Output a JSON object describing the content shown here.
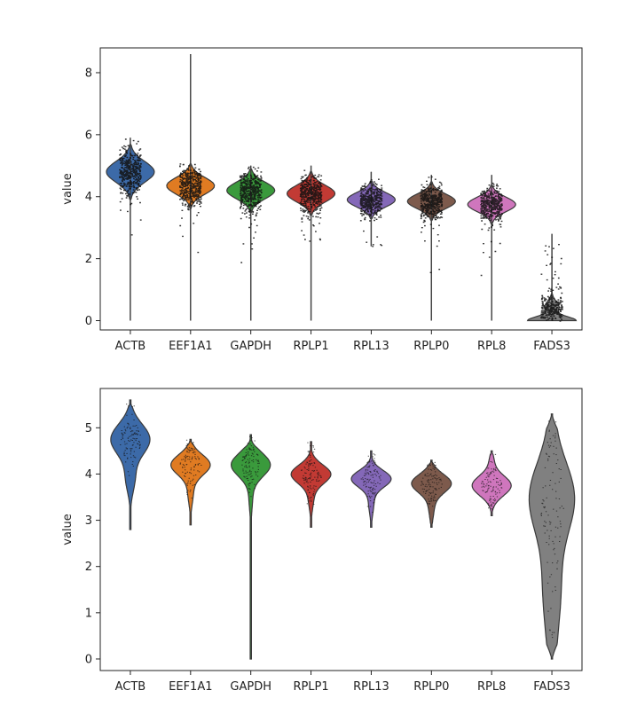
{
  "chart_data": [
    {
      "type": "violin",
      "panel": "top",
      "xlabel": "",
      "ylabel": "value",
      "ylim": [
        -0.3,
        8.8
      ],
      "yticks": [
        0,
        2,
        4,
        6,
        8
      ],
      "grid": false,
      "categories": [
        "ACTB",
        "EEF1A1",
        "GAPDH",
        "RPLP1",
        "RPL13",
        "RPLP0",
        "RPL8",
        "FADS3"
      ],
      "colors": [
        "#3c6aa8",
        "#e07b22",
        "#3a9a3c",
        "#c23a34",
        "#8468b8",
        "#7d5a4c",
        "#cf76bd",
        "#808080"
      ],
      "series": [
        {
          "name": "ACTB",
          "min": 0,
          "max": 5.9,
          "q1": 4.55,
          "median": 4.8,
          "q3": 5.05
        },
        {
          "name": "EEF1A1",
          "min": 0,
          "max": 8.6,
          "q1": 4.15,
          "median": 4.35,
          "q3": 4.55
        },
        {
          "name": "GAPDH",
          "min": 0,
          "max": 5.0,
          "q1": 4.0,
          "median": 4.2,
          "q3": 4.4
        },
        {
          "name": "RPLP1",
          "min": 0,
          "max": 5.0,
          "q1": 3.9,
          "median": 4.1,
          "q3": 4.3
        },
        {
          "name": "RPL13",
          "min": 2.4,
          "max": 4.8,
          "q1": 3.7,
          "median": 3.9,
          "q3": 4.05
        },
        {
          "name": "RPLP0",
          "min": 0,
          "max": 4.7,
          "q1": 3.65,
          "median": 3.85,
          "q3": 4.0
        },
        {
          "name": "RPL8",
          "min": 0,
          "max": 4.7,
          "q1": 3.6,
          "median": 3.75,
          "q3": 3.95
        },
        {
          "name": "FADS3",
          "min": 0,
          "max": 2.8,
          "q1": 0.0,
          "median": 0.1,
          "q3": 0.5
        }
      ]
    },
    {
      "type": "violin",
      "panel": "bottom",
      "xlabel": "",
      "ylabel": "value",
      "ylim": [
        -0.25,
        5.85
      ],
      "yticks": [
        0,
        1,
        2,
        3,
        4,
        5
      ],
      "grid": false,
      "categories": [
        "ACTB",
        "EEF1A1",
        "GAPDH",
        "RPLP1",
        "RPL13",
        "RPLP0",
        "RPL8",
        "FADS3"
      ],
      "colors": [
        "#3c6aa8",
        "#e07b22",
        "#3a9a3c",
        "#c23a34",
        "#8468b8",
        "#7d5a4c",
        "#cf76bd",
        "#808080"
      ],
      "series": [
        {
          "name": "ACTB",
          "min": 2.8,
          "max": 5.6,
          "median": 4.75
        },
        {
          "name": "EEF1A1",
          "min": 2.9,
          "max": 4.75,
          "median": 4.2
        },
        {
          "name": "GAPDH",
          "min": 0,
          "max": 4.85,
          "median": 4.2
        },
        {
          "name": "RPLP1",
          "min": 2.85,
          "max": 4.7,
          "median": 4.0
        },
        {
          "name": "RPL13",
          "min": 2.85,
          "max": 4.5,
          "median": 3.9
        },
        {
          "name": "RPLP0",
          "min": 2.85,
          "max": 4.3,
          "median": 3.8
        },
        {
          "name": "RPL8",
          "min": 3.1,
          "max": 4.5,
          "median": 3.75
        },
        {
          "name": "FADS3",
          "min": 0,
          "max": 5.3,
          "median": 3.5
        }
      ]
    }
  ]
}
